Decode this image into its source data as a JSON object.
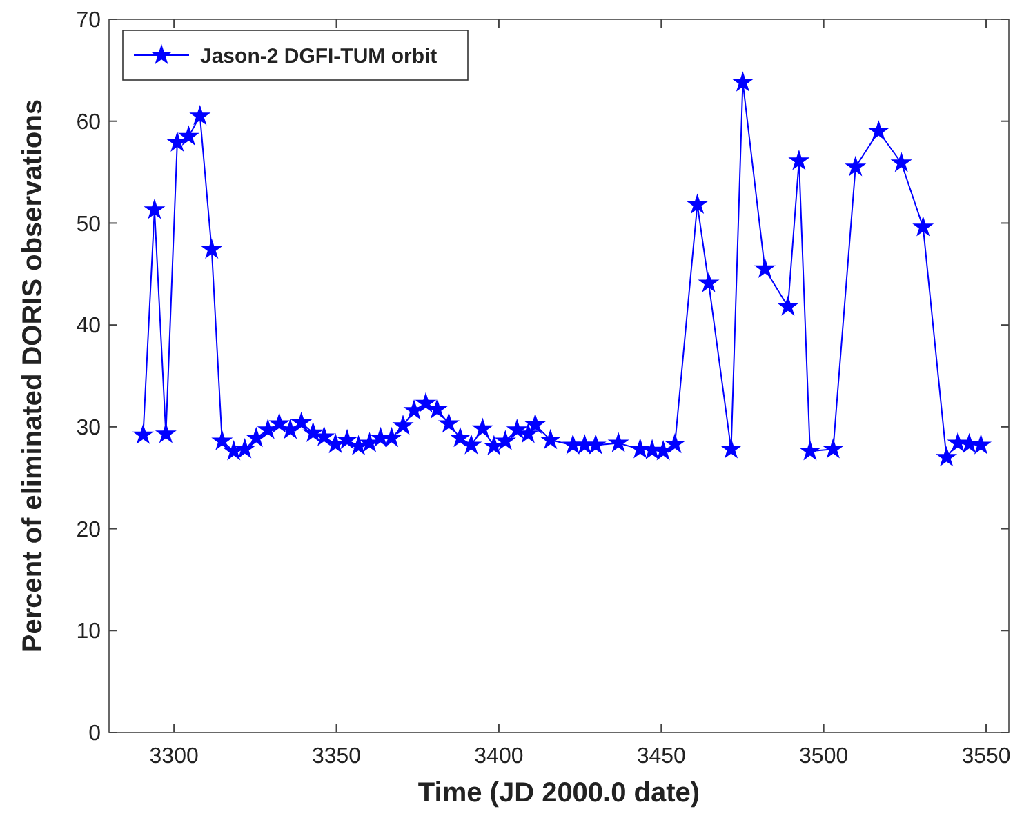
{
  "chart_data": {
    "type": "line",
    "xlabel": "Time (JD 2000.0 date)",
    "ylabel": "Percent of eliminated DORIS observations",
    "xlim": [
      3280,
      3557
    ],
    "xticks": [
      3300,
      3350,
      3400,
      3450,
      3500,
      3550
    ],
    "ylim": [
      0,
      70
    ],
    "yticks": [
      0,
      10,
      20,
      30,
      40,
      50,
      60,
      70
    ],
    "grid": false,
    "legend": "top left",
    "marker": "star",
    "line_style": "solid",
    "series": [
      {
        "name": "Jason-2 DGFI-TUM orbit",
        "color": "#0000ff",
        "x": [
          3290.5,
          3294,
          3297.5,
          3301,
          3304.5,
          3308,
          3311.6,
          3314.8,
          3318.4,
          3321.8,
          3325.3,
          3328.9,
          3332.4,
          3335.8,
          3339.2,
          3342.8,
          3346.2,
          3349.7,
          3353.3,
          3356.8,
          3360.2,
          3363.6,
          3367,
          3370.5,
          3373.9,
          3377.5,
          3381,
          3384.6,
          3388.1,
          3391.5,
          3395,
          3398.5,
          3402,
          3405.6,
          3409,
          3411.2,
          3415.9,
          3422.8,
          3426.4,
          3429.8,
          3436.8,
          3443.5,
          3447.2,
          3450.6,
          3454.2,
          3461.1,
          3464.6,
          3471.5,
          3475.1,
          3481.9,
          3489,
          3492.4,
          3495.8,
          3502.9,
          3509.8,
          3516.9,
          3523.9,
          3530.6,
          3537.8,
          3541.3,
          3544.8,
          3548.4
        ],
        "values": [
          29.2,
          51.3,
          29.3,
          57.9,
          58.5,
          60.5,
          47.4,
          28.6,
          27.6,
          27.8,
          28.9,
          29.7,
          30.3,
          29.7,
          30.4,
          29.4,
          29.0,
          28.3,
          28.7,
          28.1,
          28.4,
          28.9,
          28.9,
          30.1,
          31.6,
          32.3,
          31.7,
          30.3,
          28.9,
          28.2,
          29.8,
          28.1,
          28.6,
          29.7,
          29.3,
          30.2,
          28.7,
          28.2,
          28.2,
          28.2,
          28.4,
          27.8,
          27.7,
          27.6,
          28.3,
          51.8,
          44.1,
          27.8,
          63.8,
          45.5,
          41.8,
          56.1,
          27.6,
          27.8,
          55.5,
          59.0,
          55.9,
          49.6,
          27.0,
          28.4,
          28.3,
          28.2
        ]
      }
    ]
  }
}
